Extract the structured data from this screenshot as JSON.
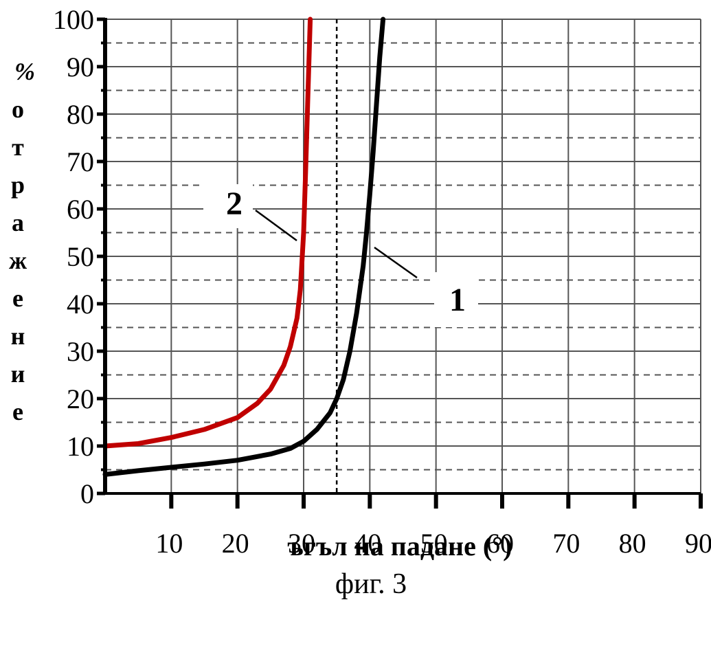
{
  "chart_data": {
    "type": "line",
    "xlabel": "ъгъл на падане (°)",
    "ylabel": "% отражение",
    "ylabel_chars": [
      "%",
      "о",
      "т",
      "р",
      "а",
      "ж",
      "е",
      "н",
      "и",
      "е"
    ],
    "caption": "фиг. 3",
    "xlim": [
      0,
      90
    ],
    "ylim": [
      0,
      100
    ],
    "x_ticks": [
      10,
      20,
      30,
      40,
      50,
      60,
      70,
      80,
      90
    ],
    "y_ticks": [
      0,
      10,
      20,
      30,
      40,
      50,
      60,
      70,
      80,
      90,
      100
    ],
    "y_minor_dashed": [
      5,
      15,
      25,
      35,
      45,
      55,
      65,
      75,
      85,
      95
    ],
    "grid": true,
    "reference_line_x": 35,
    "series": [
      {
        "name": "1",
        "color": "#000000",
        "x": [
          0,
          5,
          10,
          15,
          20,
          25,
          28,
          30,
          32,
          34,
          35,
          36,
          37,
          38,
          39,
          39.5,
          40,
          40.5,
          41,
          41.5,
          42
        ],
        "y": [
          4,
          4.8,
          5.5,
          6.2,
          7.0,
          8.3,
          9.5,
          11,
          13.5,
          17,
          20,
          24,
          30,
          38,
          48,
          55,
          63,
          72,
          82,
          92,
          100
        ]
      },
      {
        "name": "2",
        "color": "#c00000",
        "x": [
          0,
          5,
          10,
          15,
          20,
          23,
          25,
          27,
          28,
          29,
          29.5,
          30,
          30.3,
          30.6,
          31
        ],
        "y": [
          10,
          10.5,
          11.8,
          13.5,
          16,
          19,
          22,
          27,
          31,
          37,
          43,
          55,
          68,
          82,
          100
        ]
      }
    ],
    "annotations": [
      {
        "text": "2",
        "series": "2"
      },
      {
        "text": "1",
        "series": "1"
      }
    ]
  }
}
